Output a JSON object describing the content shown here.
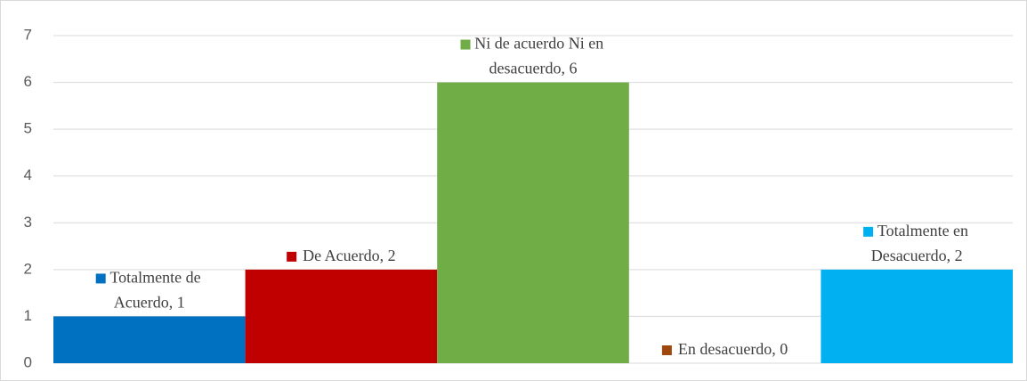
{
  "chart_data": {
    "type": "bar",
    "values": [
      1,
      2,
      6,
      0,
      2
    ],
    "value_labels": [
      "Totalmente de Acuerdo, 1",
      "De Acuerdo, 2",
      "Ni de acuerdo Ni en desacuerdo, 6",
      "En desacuerdo, 0",
      "Totalmente en Desacuerdo, 2"
    ],
    "colors": [
      "#0070c0",
      "#c00000",
      "#70ad47",
      "#9e480e",
      "#00b0f0"
    ],
    "ylim": [
      0,
      7
    ],
    "yticks": [
      0,
      1,
      2,
      3,
      4,
      5,
      6,
      7
    ],
    "grid": true
  }
}
